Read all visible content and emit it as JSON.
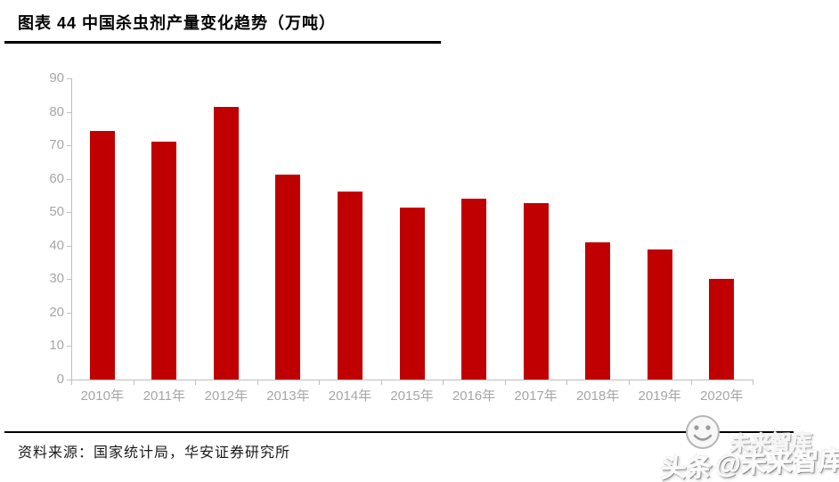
{
  "header": {
    "title": "图表 44 中国杀虫剂产量变化趋势（万吨）"
  },
  "chart_data": {
    "type": "bar",
    "title": "图表 44 中国杀虫剂产量变化趋势（万吨）",
    "unit": "万吨",
    "categories": [
      "2010年",
      "2011年",
      "2012年",
      "2013年",
      "2014年",
      "2015年",
      "2016年",
      "2017年",
      "2018年",
      "2019年",
      "2020年"
    ],
    "values": [
      74.4,
      71.0,
      81.4,
      61.3,
      56.1,
      51.3,
      54.0,
      52.6,
      41.0,
      38.9,
      30.2
    ],
    "xlabel": "",
    "ylabel": "",
    "ylim": [
      0,
      90
    ],
    "yticks": [
      0,
      10,
      20,
      30,
      40,
      50,
      60,
      70,
      80,
      90
    ],
    "grid": false,
    "legend": false,
    "bar_color": "#c00000",
    "axis_color": "#bfbfbf",
    "tick_label_color": "#a6a6a6"
  },
  "footer": {
    "source": "资料来源：国家统计局，华安证券研究所"
  },
  "watermark": {
    "brand": "头条",
    "handle": "@未来智库",
    "ghost": "未来智库",
    "logo": "smiley-face-icon"
  }
}
